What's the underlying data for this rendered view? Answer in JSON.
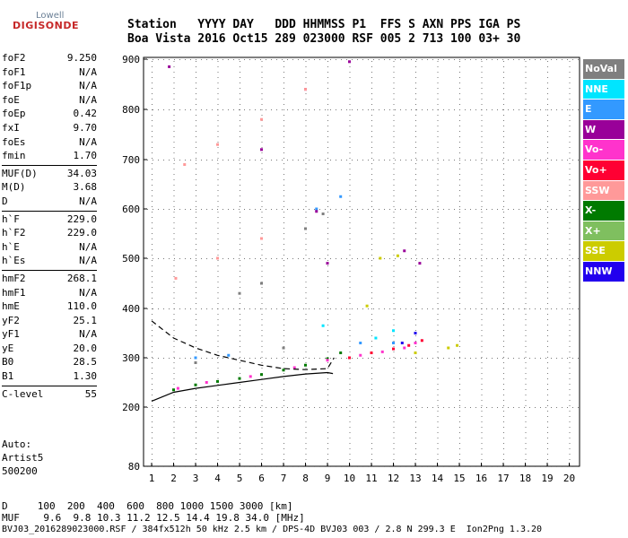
{
  "logo": {
    "top": "Lowell",
    "bottom": "DIGISONDE"
  },
  "header": {
    "row1": "Station   YYYY DAY   DDD HHMMSS P1  FFS S AXN PPS IGA PS",
    "row2": "Boa Vista 2016 Oct15 289 023000 RSF 005 2 713 100 03+ 30"
  },
  "parameters": [
    {
      "group": 1,
      "items": [
        {
          "label": "foF2",
          "value": "9.250"
        },
        {
          "label": "foF1",
          "value": "N/A"
        },
        {
          "label": "foF1p",
          "value": "N/A"
        },
        {
          "label": "foE",
          "value": "N/A"
        },
        {
          "label": "foEp",
          "value": "0.42"
        },
        {
          "label": "fxI",
          "value": "9.70"
        },
        {
          "label": "foEs",
          "value": "N/A"
        },
        {
          "label": "fmin",
          "value": "1.70"
        }
      ]
    },
    {
      "group": 2,
      "items": [
        {
          "label": "MUF(D)",
          "value": "34.03"
        },
        {
          "label": "M(D)",
          "value": "3.68"
        },
        {
          "label": "D",
          "value": "N/A"
        }
      ]
    },
    {
      "group": 3,
      "items": [
        {
          "label": "h`F",
          "value": "229.0"
        },
        {
          "label": "h`F2",
          "value": "229.0"
        },
        {
          "label": "h`E",
          "value": "N/A"
        },
        {
          "label": "h`Es",
          "value": "N/A"
        }
      ]
    },
    {
      "group": 4,
      "items": [
        {
          "label": "hmF2",
          "value": "268.1"
        },
        {
          "label": "hmF1",
          "value": "N/A"
        },
        {
          "label": "hmE",
          "value": "110.0"
        },
        {
          "label": "yF2",
          "value": "25.1"
        },
        {
          "label": "yF1",
          "value": "N/A"
        },
        {
          "label": "yE",
          "value": "20.0"
        },
        {
          "label": "B0",
          "value": "28.5"
        },
        {
          "label": "B1",
          "value": "1.30"
        }
      ]
    },
    {
      "group": 5,
      "items": [
        {
          "label": "C-level",
          "value": "55"
        }
      ]
    }
  ],
  "auto": {
    "line1": "Auto:",
    "line2": "Artist5",
    "line3": "500200"
  },
  "footer": {
    "d_row": "D     100  200  400  600  800 1000 1500 3000 [km]",
    "muf_row": "MUF    9.6  9.8 10.3 11.2 12.5 14.4 19.8 34.0 [MHz]",
    "file_row": "BVJ03_2016289023000.RSF / 384fx512h 50 kHz 2.5 km / DPS-4D BVJ03 003 / 2.8 N 299.3 E  Ion2Png 1.3.20"
  },
  "legend": [
    {
      "label": "NoVal",
      "color": "#7f7f7f",
      "text": "#ffffff"
    },
    {
      "label": "NNE",
      "color": "#00e5ff",
      "text": "#ffffff"
    },
    {
      "label": "E",
      "color": "#3399ff",
      "text": "#ffffff"
    },
    {
      "label": "W",
      "color": "#990099",
      "text": "#ffffff"
    },
    {
      "label": "Vo-",
      "color": "#ff33cc",
      "text": "#ffffff"
    },
    {
      "label": "Vo+",
      "color": "#ff0033",
      "text": "#ffffff"
    },
    {
      "label": "SSW",
      "color": "#ff9999",
      "text": "#ffffff"
    },
    {
      "label": "X-",
      "color": "#007a00",
      "text": "#ffffff"
    },
    {
      "label": "X+",
      "color": "#7fbf5f",
      "text": "#ffffff"
    },
    {
      "label": "SSE",
      "color": "#cccc00",
      "text": "#ffffff"
    },
    {
      "label": "NNW",
      "color": "#2200ee",
      "text": "#ffffff"
    }
  ],
  "chart_data": {
    "type": "scatter",
    "xlabel": "",
    "ylabel": "",
    "xlim": [
      1,
      20
    ],
    "ylim": [
      80,
      900
    ],
    "x_ticks": [
      1,
      2,
      3,
      4,
      5,
      6,
      7,
      8,
      9,
      10,
      11,
      12,
      13,
      14,
      15,
      16,
      17,
      18,
      19,
      20
    ],
    "y_ticks": [
      80,
      200,
      300,
      400,
      500,
      600,
      700,
      800,
      900
    ],
    "grid": true,
    "series": [
      {
        "name": "X-",
        "color": "#007a00",
        "points": [
          [
            2.0,
            235
          ],
          [
            3.0,
            245
          ],
          [
            4.0,
            252
          ],
          [
            5.0,
            258
          ],
          [
            6.0,
            266
          ],
          [
            7.0,
            275
          ],
          [
            8.0,
            285
          ],
          [
            9.0,
            298
          ],
          [
            9.6,
            310
          ]
        ]
      },
      {
        "name": "Vo-",
        "color": "#ff33cc",
        "points": [
          [
            2.2,
            238
          ],
          [
            3.5,
            250
          ],
          [
            5.5,
            262
          ],
          [
            7.5,
            280
          ],
          [
            9.0,
            295
          ],
          [
            10.5,
            305
          ],
          [
            11.5,
            312
          ],
          [
            12.5,
            320
          ],
          [
            13.0,
            330
          ]
        ]
      },
      {
        "name": "Vo+",
        "color": "#ff0033",
        "points": [
          [
            10.0,
            300
          ],
          [
            11.0,
            310
          ],
          [
            12.0,
            318
          ],
          [
            12.7,
            325
          ],
          [
            13.3,
            335
          ]
        ]
      },
      {
        "name": "E",
        "color": "#3399ff",
        "points": [
          [
            3.0,
            300
          ],
          [
            4.5,
            305
          ],
          [
            8.5,
            600
          ],
          [
            9.6,
            625
          ],
          [
            10.5,
            330
          ],
          [
            12.0,
            330
          ]
        ]
      },
      {
        "name": "W",
        "color": "#990099",
        "points": [
          [
            1.8,
            885
          ],
          [
            6.0,
            720
          ],
          [
            8.0,
            840
          ],
          [
            8.5,
            595
          ],
          [
            9.0,
            490
          ],
          [
            10.0,
            895
          ],
          [
            12.5,
            515
          ],
          [
            13.2,
            490
          ]
        ]
      },
      {
        "name": "SSW",
        "color": "#ff9999",
        "points": [
          [
            2.1,
            460
          ],
          [
            4.0,
            500
          ],
          [
            6.0,
            540
          ],
          [
            2.5,
            690
          ],
          [
            4.0,
            730
          ],
          [
            6.0,
            780
          ],
          [
            8.0,
            840
          ]
        ]
      },
      {
        "name": "SSE",
        "color": "#cccc00",
        "points": [
          [
            10.8,
            405
          ],
          [
            11.4,
            500
          ],
          [
            12.2,
            505
          ],
          [
            13.0,
            310
          ],
          [
            14.5,
            320
          ],
          [
            14.9,
            325
          ]
        ]
      },
      {
        "name": "NNE",
        "color": "#00e5ff",
        "points": [
          [
            8.8,
            365
          ],
          [
            11.2,
            340
          ],
          [
            12.0,
            355
          ]
        ]
      },
      {
        "name": "NNW",
        "color": "#2200ee",
        "points": [
          [
            12.4,
            330
          ],
          [
            13.0,
            350
          ]
        ]
      },
      {
        "name": "NoVal",
        "color": "#7f7f7f",
        "points": [
          [
            5.0,
            430
          ],
          [
            6.0,
            450
          ],
          [
            8.0,
            560
          ],
          [
            8.8,
            590
          ],
          [
            3.0,
            290
          ],
          [
            7.0,
            320
          ]
        ]
      }
    ],
    "profile_curve": [
      [
        1.0,
        212
      ],
      [
        2.0,
        230
      ],
      [
        3.0,
        238
      ],
      [
        4.0,
        244
      ],
      [
        5.0,
        250
      ],
      [
        6.0,
        256
      ],
      [
        7.0,
        262
      ],
      [
        8.0,
        267
      ],
      [
        9.0,
        270
      ],
      [
        9.25,
        268
      ]
    ],
    "model_curve": [
      [
        1.0,
        375
      ],
      [
        2.0,
        340
      ],
      [
        3.0,
        320
      ],
      [
        4.0,
        305
      ],
      [
        5.0,
        295
      ],
      [
        6.0,
        285
      ],
      [
        7.0,
        278
      ],
      [
        8.0,
        276
      ],
      [
        9.0,
        278
      ],
      [
        9.3,
        300
      ]
    ]
  }
}
